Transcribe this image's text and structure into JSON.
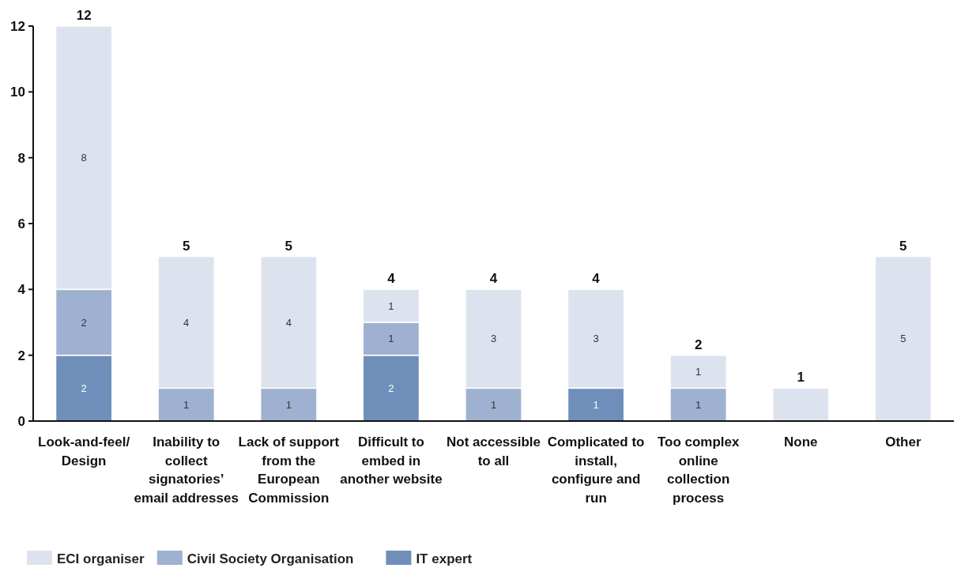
{
  "chart_data": {
    "type": "bar",
    "stacked": true,
    "categories": [
      "Look-and-feel/ Design",
      "Inability to collect signatories’ email addresses",
      "Lack of support from the European Commission",
      "Difficult to embed in another website",
      "Not accessible to all",
      "Complicated to install, configure and run",
      "Too complex online collection process",
      "None",
      "Other"
    ],
    "series": [
      {
        "name": "IT expert",
        "color": "#6f8fba",
        "values": [
          2,
          0,
          0,
          2,
          0,
          1,
          0,
          0,
          0
        ],
        "value_labels": [
          "2",
          null,
          null,
          "2",
          null,
          "1",
          null,
          null,
          null
        ]
      },
      {
        "name": "Civil Society Organisation",
        "color": "#9fb1d0",
        "values": [
          2,
          1,
          1,
          1,
          1,
          0,
          1,
          0,
          0
        ],
        "value_labels": [
          "2",
          "1",
          "1",
          "1",
          "1",
          null,
          "1",
          null,
          null
        ]
      },
      {
        "name": "ECI organiser",
        "color": "#dde3ee",
        "values": [
          8,
          4,
          4,
          1,
          3,
          3,
          1,
          1,
          5
        ],
        "value_labels": [
          "8",
          "4",
          "4",
          "1",
          "3",
          "3",
          "1",
          null,
          "5"
        ]
      }
    ],
    "totals": [
      "12",
      "5",
      "5",
      "4",
      "4",
      "4",
      "2",
      "1",
      "5"
    ],
    "ylim": [
      0,
      12
    ],
    "yticks": [
      0,
      2,
      4,
      6,
      8,
      10,
      12
    ],
    "grid": false,
    "legend": "bottom left"
  }
}
